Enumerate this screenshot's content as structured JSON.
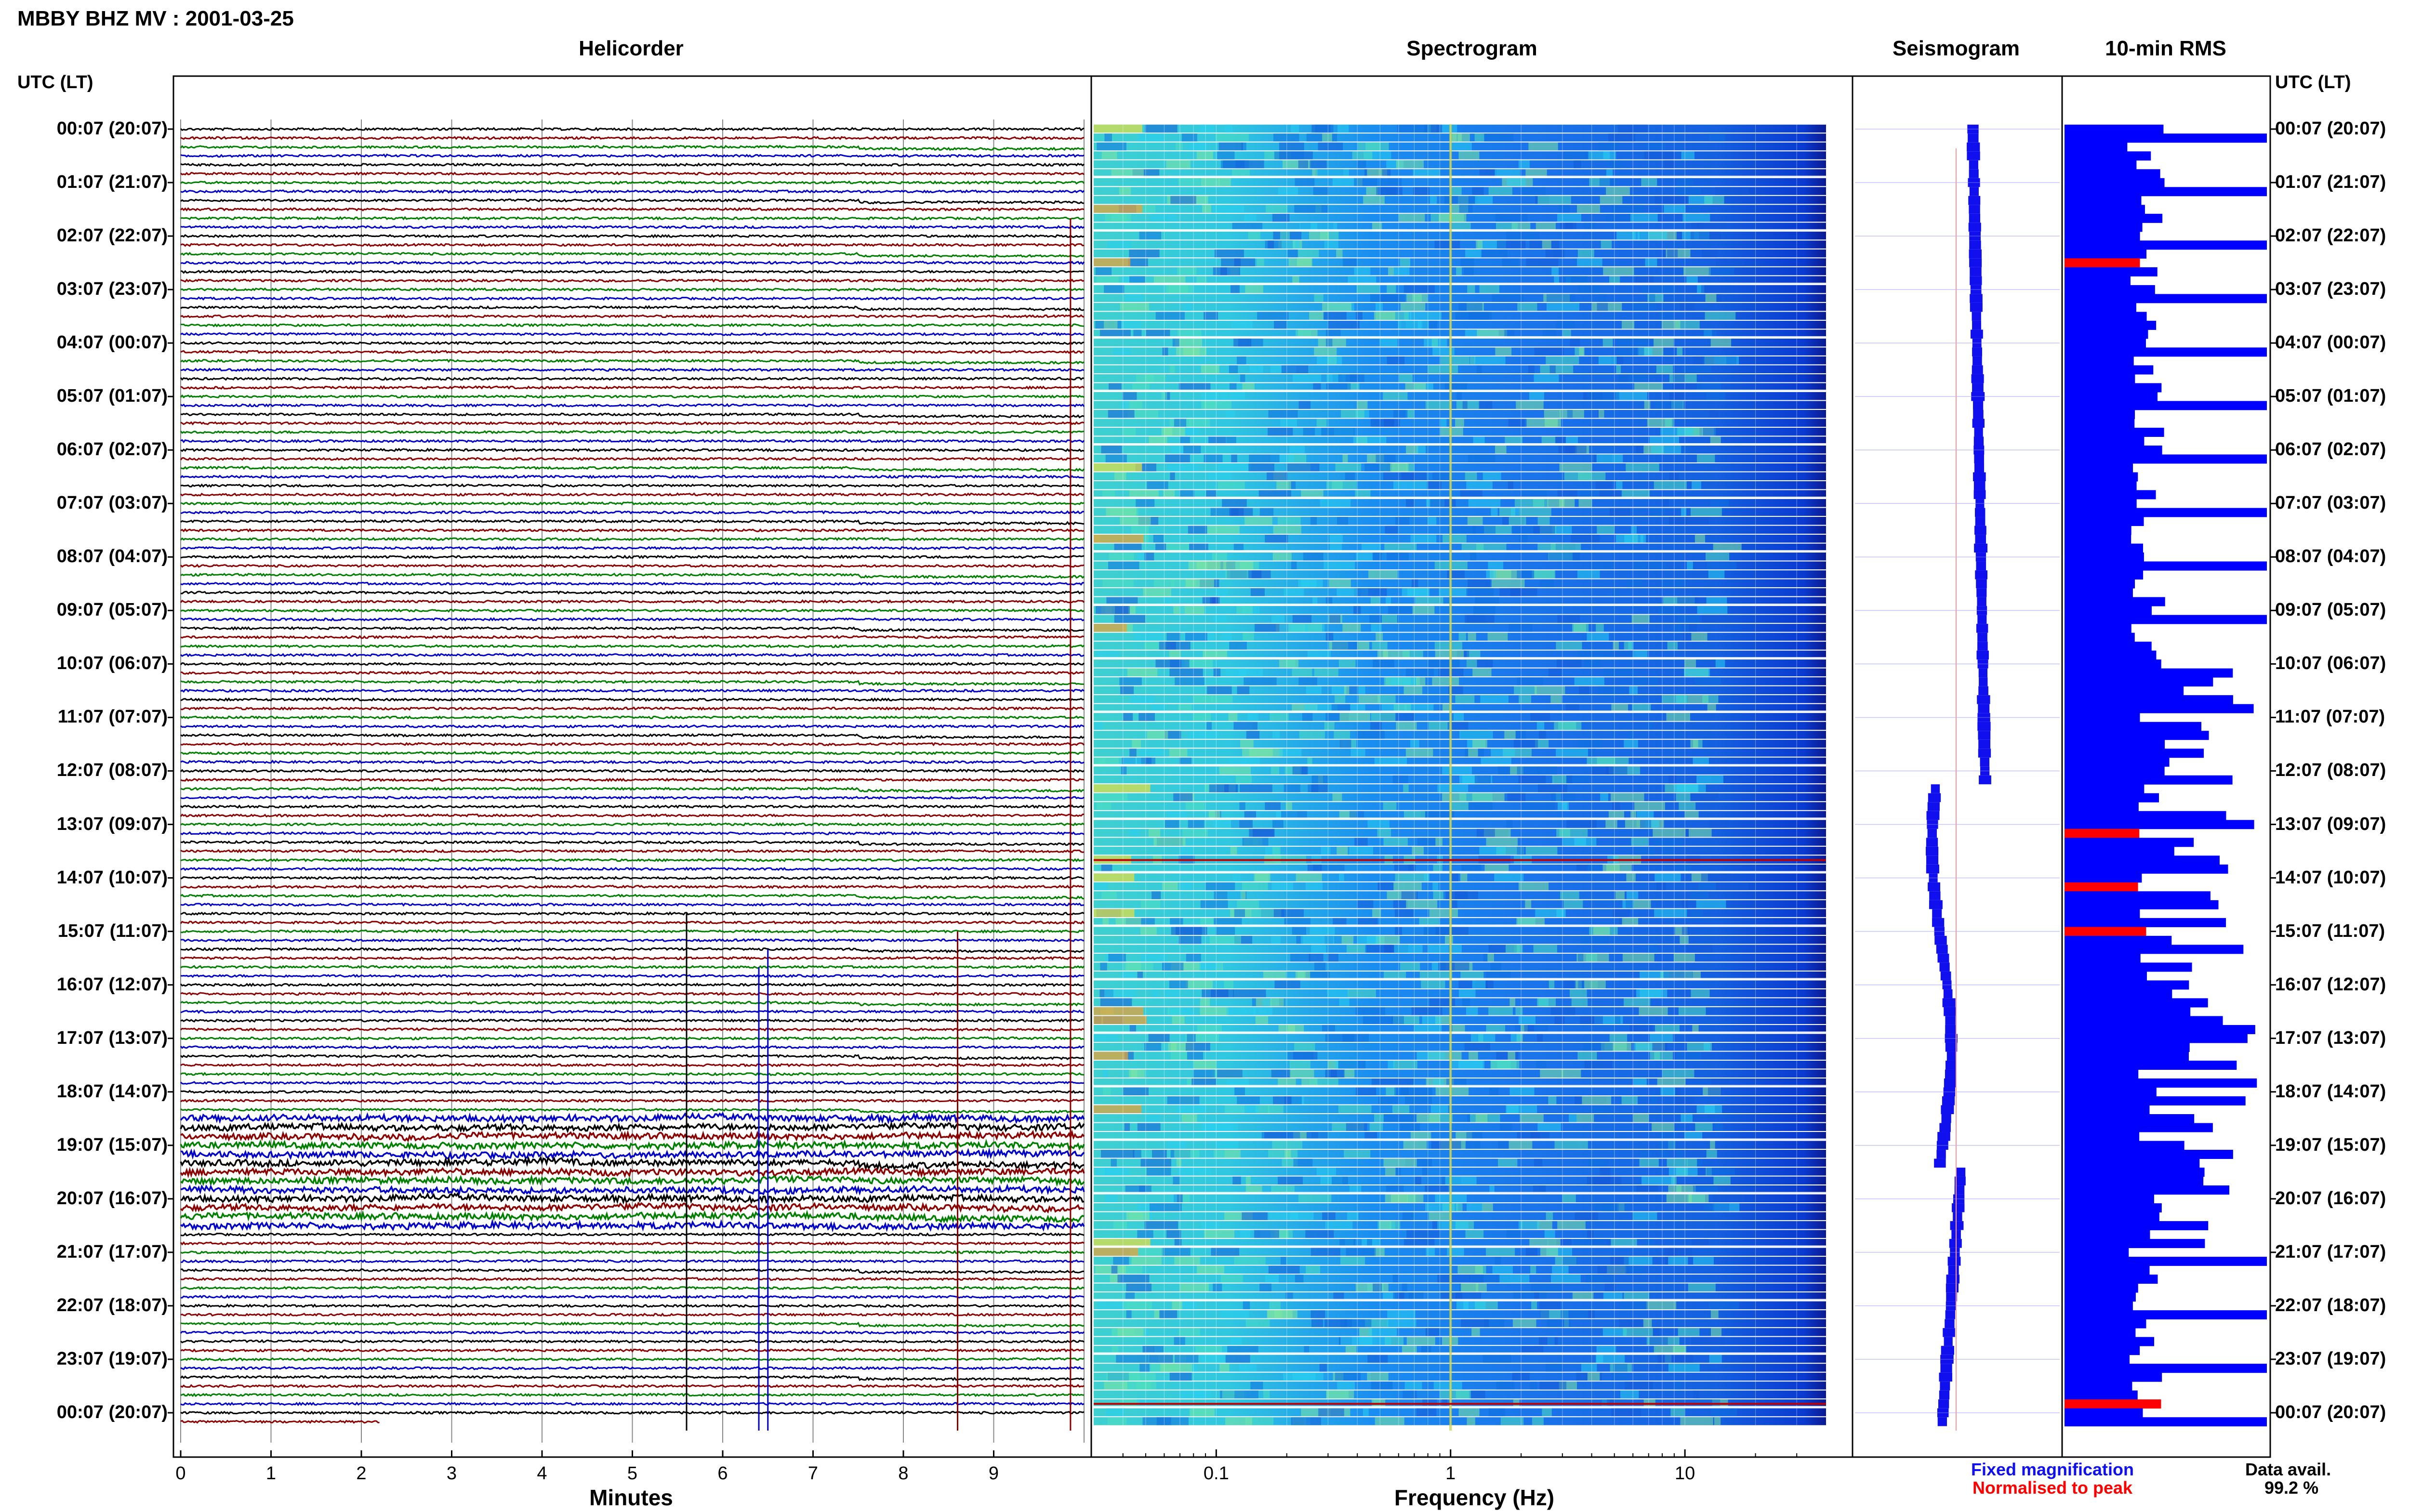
{
  "page": {
    "title": "MBBY BHZ MV : 2001-03-25",
    "utc_header_left": "UTC (LT)",
    "utc_header_right": "UTC (LT)"
  },
  "panels": {
    "helicorder": "Helicorder",
    "spectrogram": "Spectrogram",
    "seismogram": "Seismogram",
    "rms": "10-min RMS"
  },
  "time_labels": [
    "00:07 (20:07)",
    "01:07 (21:07)",
    "02:07 (22:07)",
    "03:07 (23:07)",
    "04:07 (00:07)",
    "05:07 (01:07)",
    "06:07 (02:07)",
    "07:07 (03:07)",
    "08:07 (04:07)",
    "09:07 (05:07)",
    "10:07 (06:07)",
    "11:07 (07:07)",
    "12:07 (08:07)",
    "13:07 (09:07)",
    "14:07 (10:07)",
    "15:07 (11:07)",
    "16:07 (12:07)",
    "17:07 (13:07)",
    "18:07 (14:07)",
    "19:07 (15:07)",
    "20:07 (16:07)",
    "21:07 (17:07)",
    "22:07 (18:07)",
    "23:07 (19:07)",
    "00:07 (20:07)"
  ],
  "axes": {
    "helicorder_xlabel": "Minutes",
    "spectrogram_xlabel": "Frequency (Hz)",
    "minute_ticks": [
      "0",
      "1",
      "2",
      "3",
      "4",
      "5",
      "6",
      "7",
      "8",
      "9"
    ],
    "freq_ticks": [
      "0.1",
      "1",
      "10"
    ]
  },
  "legend": {
    "fixed": "Fixed magnification",
    "normalised": "Normalised to peak",
    "data_avail_label": "Data avail.",
    "data_avail_value": "99.2 %"
  },
  "colors": {
    "trace_cycle": [
      "#000000",
      "#8b0000",
      "#007f00",
      "#0000c8"
    ],
    "seismo_blue": "#1010ee",
    "rms_blue": "#0000ff",
    "rms_red": "#ff0000"
  },
  "chart_data": {
    "type": "helicorder",
    "helicorder": {
      "xlim": [
        0,
        10
      ],
      "lines_per_hour": 6,
      "minutes_per_line": 10,
      "traces": 146
    },
    "spectrogram": {
      "xscale": "log",
      "xlim": [
        0.03,
        40
      ],
      "rows": 146
    },
    "rms": {
      "xscale": "relative",
      "normalised_peak_rows": [
        15,
        79,
        85,
        90,
        143
      ]
    }
  }
}
